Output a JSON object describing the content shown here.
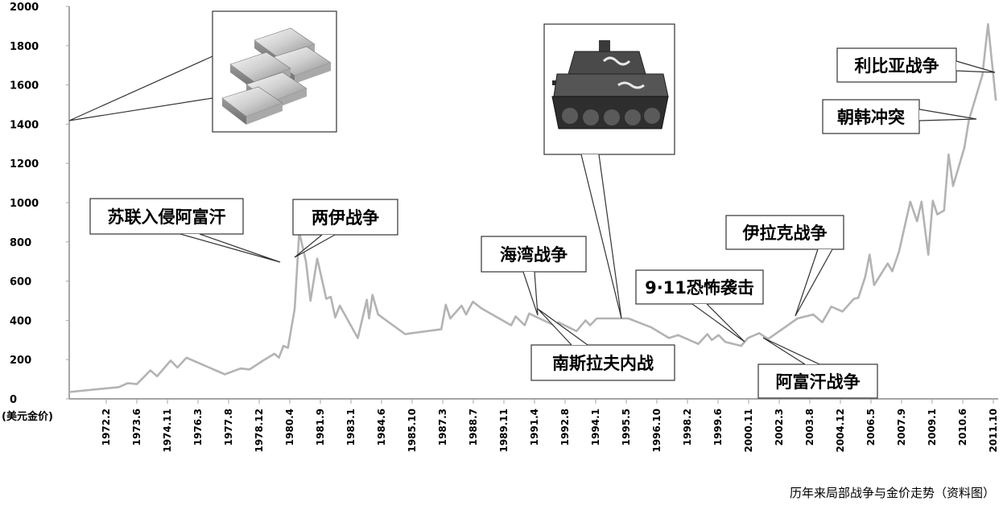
{
  "chart_data": {
    "type": "line",
    "caption": "历年来局部战争与金价走势（资料图）",
    "unit_label": "(美元金价)",
    "ylim": [
      0,
      2000
    ],
    "y_ticks": [
      "0",
      "200",
      "400",
      "600",
      "800",
      "1000",
      "1200",
      "1400",
      "1600",
      "1800",
      "2000"
    ],
    "x_tick_labels": [
      "1972.2",
      "1973.6",
      "1974.11",
      "1976.3",
      "1977.8",
      "1978.12",
      "1980.4",
      "1981.9",
      "1983.1",
      "1984.6",
      "1985.10",
      "1987.3",
      "1988.7",
      "1989.11",
      "1991.4",
      "1992.8",
      "1994.1",
      "1995.5",
      "1996.10",
      "1998.2",
      "1999.6",
      "2000.11",
      "2002.3",
      "2003.8",
      "2004.12",
      "2006.5",
      "2007.9",
      "2009.1",
      "2010.6",
      "2011.10"
    ],
    "series": [
      {
        "color": "#b3b3b3",
        "points": [
          [
            1970.0,
            35
          ],
          [
            1972.2,
            60
          ],
          [
            1972.6,
            80
          ],
          [
            1973.0,
            75
          ],
          [
            1973.6,
            145
          ],
          [
            1973.9,
            115
          ],
          [
            1974.5,
            195
          ],
          [
            1974.8,
            160
          ],
          [
            1975.2,
            210
          ],
          [
            1976.9,
            125
          ],
          [
            1977.6,
            155
          ],
          [
            1978.0,
            150
          ],
          [
            1978.6,
            195
          ],
          [
            1979.1,
            230
          ],
          [
            1979.3,
            210
          ],
          [
            1979.5,
            270
          ],
          [
            1979.7,
            260
          ],
          [
            1980.0,
            460
          ],
          [
            1980.2,
            850
          ],
          [
            1980.5,
            700
          ],
          [
            1980.7,
            500
          ],
          [
            1981.0,
            715
          ],
          [
            1981.4,
            510
          ],
          [
            1981.6,
            520
          ],
          [
            1981.8,
            415
          ],
          [
            1982.0,
            475
          ],
          [
            1982.8,
            310
          ],
          [
            1983.2,
            505
          ],
          [
            1983.3,
            410
          ],
          [
            1983.45,
            530
          ],
          [
            1983.7,
            430
          ],
          [
            1984.9,
            330
          ],
          [
            1986.5,
            355
          ],
          [
            1986.7,
            480
          ],
          [
            1986.9,
            410
          ],
          [
            1987.4,
            475
          ],
          [
            1987.6,
            430
          ],
          [
            1987.9,
            495
          ],
          [
            1988.3,
            460
          ],
          [
            1989.6,
            375
          ],
          [
            1989.8,
            420
          ],
          [
            1990.2,
            375
          ],
          [
            1990.4,
            435
          ],
          [
            1991.5,
            375
          ],
          [
            1991.7,
            390
          ],
          [
            1992.5,
            345
          ],
          [
            1992.9,
            400
          ],
          [
            1993.1,
            375
          ],
          [
            1993.4,
            410
          ],
          [
            1994.8,
            410
          ],
          [
            1995.8,
            365
          ],
          [
            1996.6,
            310
          ],
          [
            1997.0,
            325
          ],
          [
            1997.4,
            305
          ],
          [
            1997.9,
            280
          ],
          [
            1998.3,
            330
          ],
          [
            1998.5,
            300
          ],
          [
            1998.8,
            325
          ],
          [
            1999.1,
            290
          ],
          [
            1999.8,
            270
          ],
          [
            2000.1,
            310
          ],
          [
            2000.6,
            335
          ],
          [
            2001.0,
            305
          ],
          [
            2002.3,
            410
          ],
          [
            2003.0,
            430
          ],
          [
            2003.4,
            390
          ],
          [
            2003.8,
            470
          ],
          [
            2004.3,
            445
          ],
          [
            2004.8,
            510
          ],
          [
            2005.0,
            515
          ],
          [
            2005.3,
            620
          ],
          [
            2005.5,
            735
          ],
          [
            2005.7,
            580
          ],
          [
            2006.3,
            690
          ],
          [
            2006.5,
            650
          ],
          [
            2006.8,
            750
          ],
          [
            2007.3,
            1005
          ],
          [
            2007.6,
            905
          ],
          [
            2007.8,
            1005
          ],
          [
            2008.1,
            735
          ],
          [
            2008.3,
            1010
          ],
          [
            2008.5,
            940
          ],
          [
            2008.8,
            960
          ],
          [
            2009.0,
            1245
          ],
          [
            2009.2,
            1085
          ],
          [
            2009.7,
            1280
          ],
          [
            2009.9,
            1420
          ],
          [
            2010.5,
            1650
          ],
          [
            2010.75,
            1910
          ],
          [
            2011.1,
            1520
          ]
        ]
      }
    ],
    "annotations": [
      {
        "label": "苏联入侵阿富汗"
      },
      {
        "label": "两伊战争"
      },
      {
        "label": "海湾战争"
      },
      {
        "label": "南斯拉夫内战"
      },
      {
        "label": "9·11恐怖袭击"
      },
      {
        "label": "阿富汗战争"
      },
      {
        "label": "伊拉克战争"
      },
      {
        "label": "朝韩冲突"
      },
      {
        "label": "利比亚战争"
      }
    ],
    "images": [
      {
        "name": "gold-bars-image"
      },
      {
        "name": "tank-image"
      }
    ]
  }
}
